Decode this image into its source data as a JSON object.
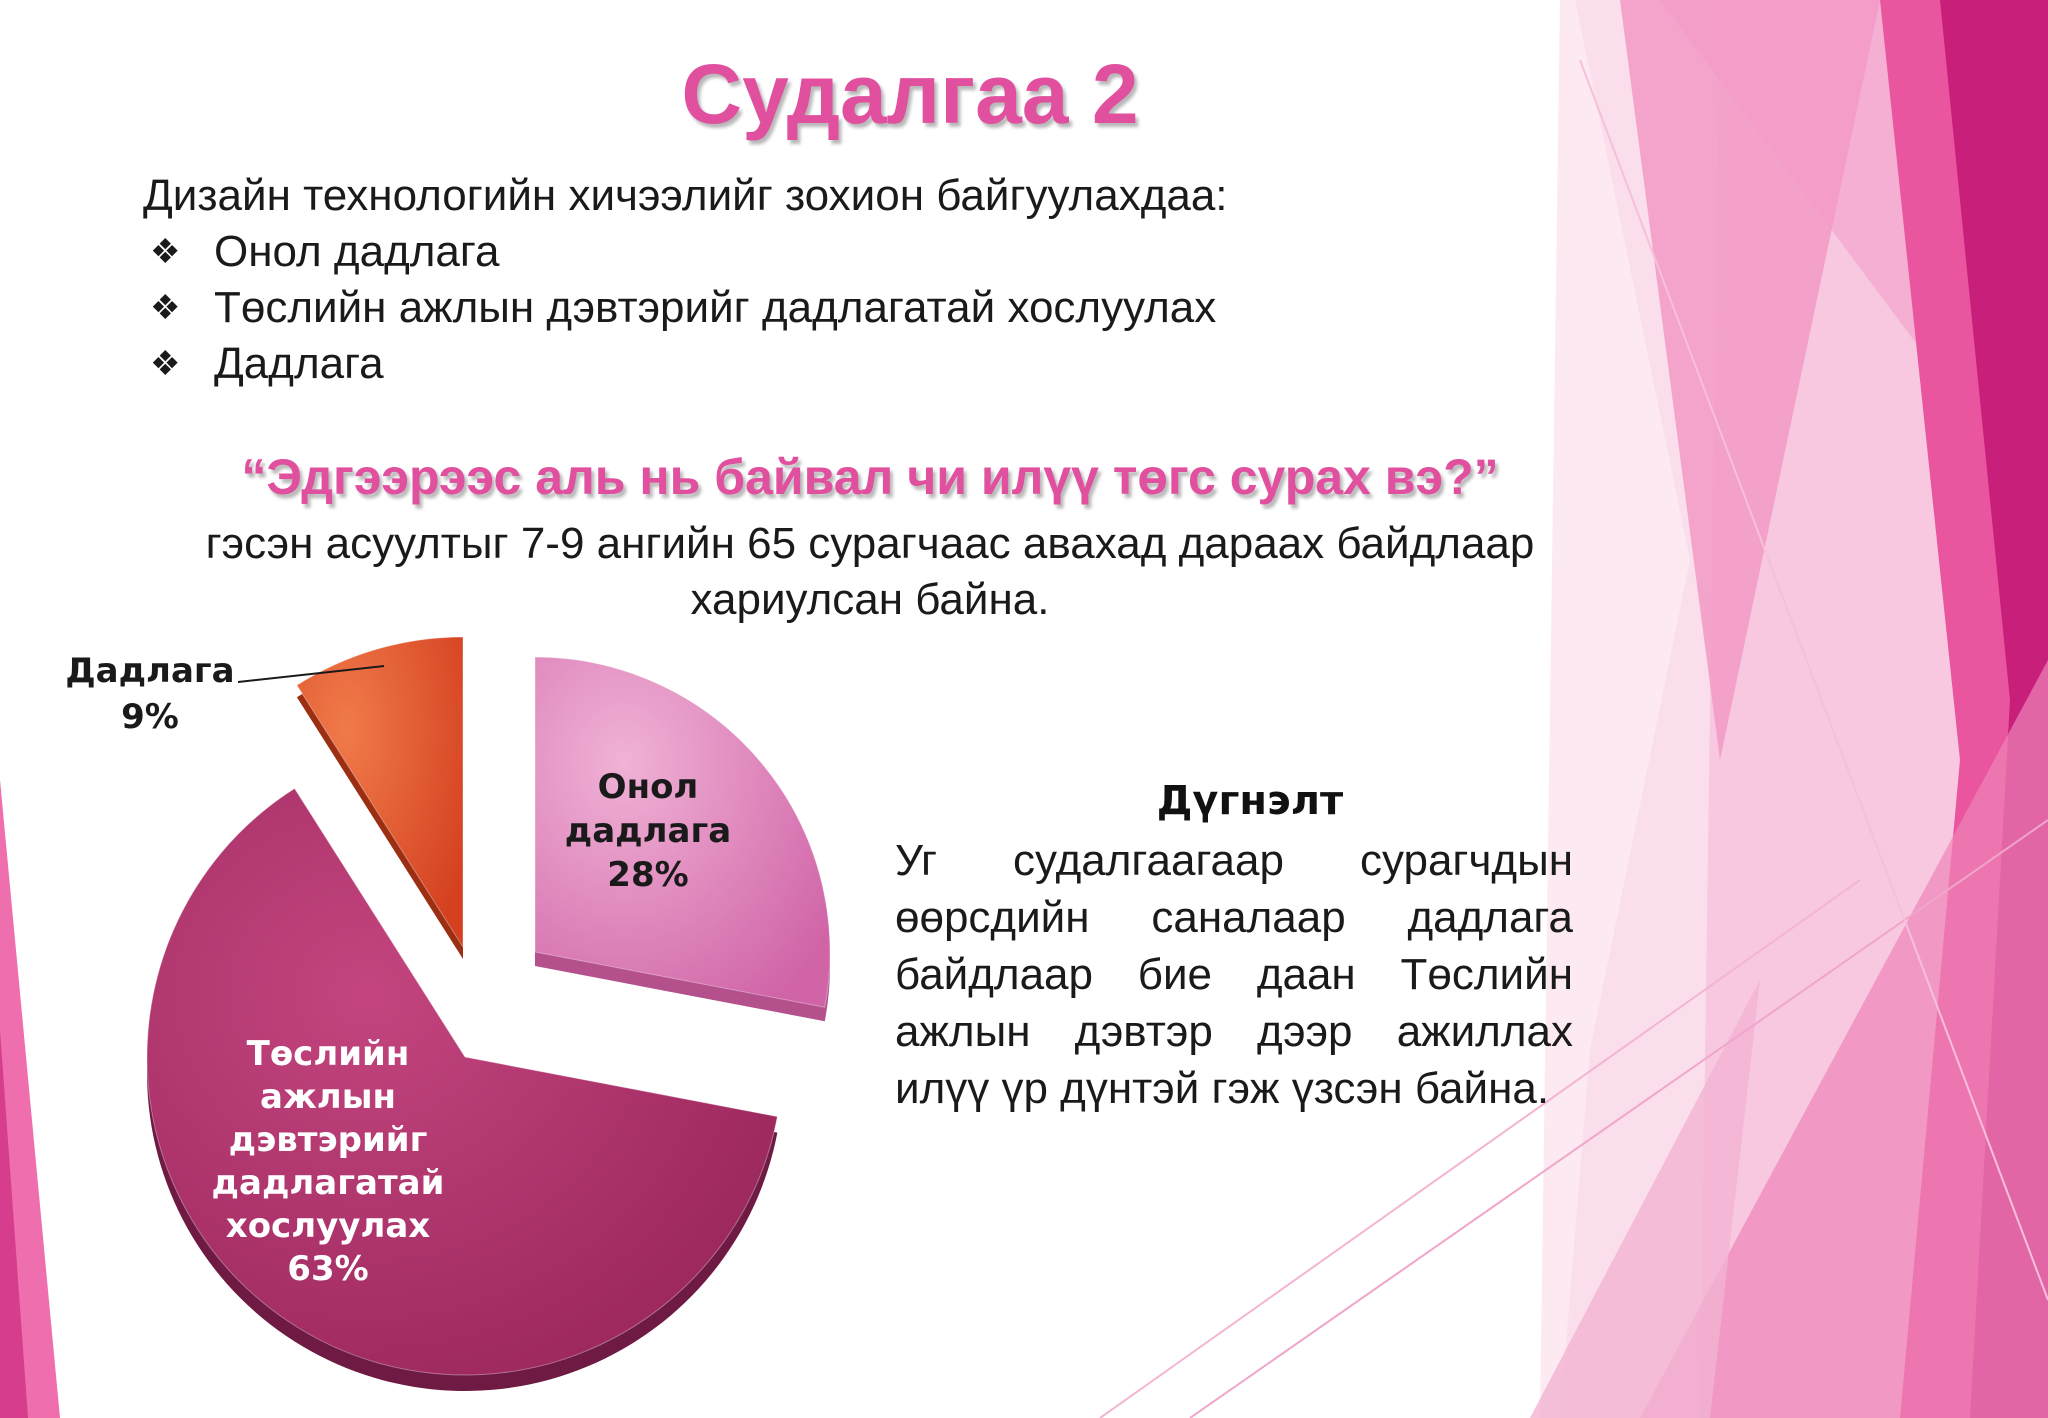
{
  "slide": {
    "title": "Судалгаа 2",
    "intro": "Дизайн технологийн хичээлийг зохион байгуулахдаа:",
    "bullets": [
      "Онол дадлага",
      "Төслийн ажлын дэвтэрийг дадлагатай хослуулах",
      "Дадлага"
    ],
    "bullet_glyph": "❖",
    "question": "“Эдгээрээс аль нь байвал чи илүү төгс сурах вэ?”",
    "description_line1": "гэсэн асуултыг 7-9 ангийн 65 сурагчаас авахад дараах байдлаар",
    "description_line2": "хариулсан байна.",
    "conclusion_title": "Дүгнэлт",
    "conclusion_text": "Уг судалгаагаар сурагчдын өөрсдийн саналаар дадлага байдлаар бие даан Төслийн ажлын дэвтэр дээр ажиллах илүү үр дүнтэй гэж үзсэн байна."
  },
  "colors": {
    "title_pink": "#e0509f",
    "slice_theory": "#df7ab8",
    "slice_workbook": "#a83064",
    "slice_practice": "#e0502a",
    "background_magenta": "#b81e75"
  },
  "chart_data": {
    "type": "pie",
    "style": "3d-exploded",
    "slices": [
      {
        "label_lines": [
          "Онол",
          "дадлага",
          "28%"
        ],
        "value": 28,
        "color": "#df7ab8",
        "label_color": "#1a1a1a"
      },
      {
        "label_lines": [
          "Төслийн",
          "ажлын",
          "дэвтэрийг",
          "дадлагатай",
          "хослуулах",
          "63%"
        ],
        "value": 63,
        "color": "#a83064",
        "label_color": "#ffffff"
      },
      {
        "label_lines": [
          "Дадлага",
          "9%"
        ],
        "value": 9,
        "color": "#e0502a",
        "label_color": "#1a1a1a"
      }
    ]
  }
}
